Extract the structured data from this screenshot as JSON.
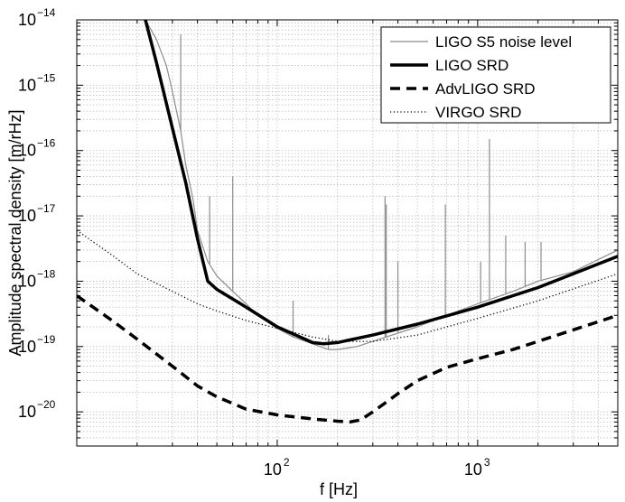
{
  "chart_data": {
    "type": "line",
    "scale": {
      "x": "log",
      "y": "log"
    },
    "xlabel": "f [Hz]",
    "ylabel": "Amplitude spectral density [m/rHz]",
    "xlim": [
      10,
      5000
    ],
    "ylim": [
      3e-21,
      1e-14
    ],
    "x_ticks": [
      {
        "value": 100,
        "base": "10",
        "exp": "2"
      },
      {
        "value": 1000,
        "base": "10",
        "exp": "3"
      }
    ],
    "y_ticks": [
      {
        "value": 1e-14,
        "base": "10",
        "exp": "−14"
      },
      {
        "value": 1e-15,
        "base": "10",
        "exp": "−15"
      },
      {
        "value": 1e-16,
        "base": "10",
        "exp": "−16"
      },
      {
        "value": 1e-17,
        "base": "10",
        "exp": "−17"
      },
      {
        "value": 1e-18,
        "base": "10",
        "exp": "−18"
      },
      {
        "value": 1e-19,
        "base": "10",
        "exp": "−19"
      },
      {
        "value": 1e-20,
        "base": "10",
        "exp": "−20"
      }
    ],
    "grid": true,
    "legend_position": "top-right",
    "series": [
      {
        "name": "LIGO S5 noise level",
        "color": "#8c8c8c",
        "style": "solid-thin",
        "x": [
          22,
          25,
          28,
          30,
          33,
          35,
          38,
          40,
          45,
          50,
          60,
          70,
          80,
          100,
          120,
          150,
          180,
          200,
          250,
          300,
          400,
          500,
          700,
          1000,
          1500,
          2000,
          3000,
          5000
        ],
        "y": [
          1e-14,
          5e-15,
          2e-15,
          8e-16,
          2e-16,
          6e-17,
          1.8e-17,
          6e-18,
          2e-18,
          1.2e-18,
          7e-19,
          4.5e-19,
          3e-19,
          1.9e-19,
          1.4e-19,
          1.1e-19,
          9e-20,
          9e-20,
          1e-19,
          1.2e-19,
          1.6e-19,
          2e-19,
          3e-19,
          4.5e-19,
          7e-19,
          1e-18,
          1.4e-18,
          3e-18
        ],
        "spikes": [
          {
            "x": 33,
            "y": 6e-15
          },
          {
            "x": 46,
            "y": 2e-17
          },
          {
            "x": 60,
            "y": 4e-17
          },
          {
            "x": 120,
            "y": 5e-19
          },
          {
            "x": 180,
            "y": 1.5e-19
          },
          {
            "x": 345,
            "y": 2e-17
          },
          {
            "x": 350,
            "y": 1.5e-17
          },
          {
            "x": 400,
            "y": 2e-18
          },
          {
            "x": 690,
            "y": 1.5e-17
          },
          {
            "x": 1035,
            "y": 2e-18
          },
          {
            "x": 1145,
            "y": 1.5e-16
          },
          {
            "x": 1380,
            "y": 5e-18
          },
          {
            "x": 1725,
            "y": 4e-18
          },
          {
            "x": 2070,
            "y": 4e-18
          }
        ]
      },
      {
        "name": "LIGO SRD",
        "color": "#000000",
        "style": "solid-thick",
        "x": [
          22,
          25,
          30,
          35,
          40,
          45,
          50,
          70,
          100,
          150,
          170,
          200,
          300,
          500,
          1000,
          2000,
          5000
        ],
        "y": [
          1e-14,
          2.2e-15,
          2.2e-16,
          3.2e-17,
          4.5e-18,
          1e-18,
          7.5e-19,
          4e-19,
          2e-19,
          1.15e-19,
          1.1e-19,
          1.15e-19,
          1.5e-19,
          2.2e-19,
          4e-19,
          8e-19,
          2.4e-18
        ]
      },
      {
        "name": "AdvLIGO SRD",
        "color": "#000000",
        "style": "dashed",
        "x": [
          10,
          15,
          20,
          30,
          40,
          50,
          70,
          100,
          150,
          200,
          230,
          260,
          300,
          400,
          500,
          700,
          1000,
          1500,
          2000,
          3000,
          5000
        ],
        "y": [
          6e-19,
          2.5e-19,
          1.3e-19,
          5e-20,
          2.5e-20,
          1.7e-20,
          1.1e-20,
          9e-21,
          7.8e-21,
          7.2e-21,
          7e-21,
          7.5e-21,
          1e-20,
          1.9e-20,
          3e-20,
          4.8e-20,
          6.5e-20,
          9e-20,
          1.2e-19,
          1.8e-19,
          3e-19
        ]
      },
      {
        "name": "VIRGO SRD",
        "color": "#000000",
        "style": "dotted",
        "x": [
          10,
          15,
          20,
          30,
          40,
          50,
          70,
          100,
          150,
          200,
          300,
          500,
          1000,
          2000,
          5000
        ],
        "y": [
          6e-18,
          2.5e-18,
          1.3e-18,
          7e-19,
          4.5e-19,
          3.5e-19,
          2.5e-19,
          1.9e-19,
          1.4e-19,
          1.2e-19,
          1.2e-19,
          1.5e-19,
          2.7e-19,
          5e-19,
          1.3e-18
        ]
      }
    ]
  }
}
